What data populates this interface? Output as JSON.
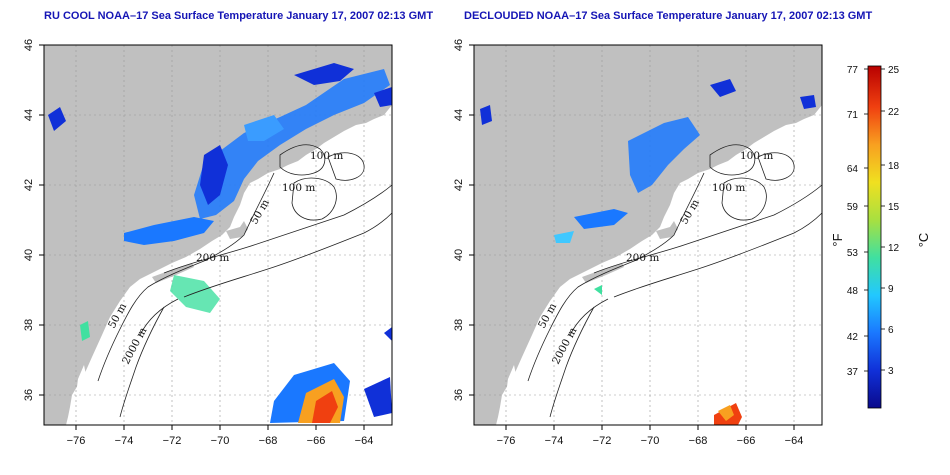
{
  "panels": [
    {
      "id": "left",
      "title": "RU COOL NOAA–17 Sea Surface Temperature January 17, 2007 02:13 GMT",
      "contour_labels": [
        "100 m",
        "100 m",
        "50 m",
        "200 m",
        "50 m",
        "2000 m"
      ]
    },
    {
      "id": "right",
      "title": "DECLOUDED NOAA–17 Sea Surface Temperature January 17, 2007 02:13 GMT",
      "contour_labels": [
        "100 m",
        "100 m",
        "50 m",
        "200 m",
        "50 m",
        "2000 m"
      ]
    }
  ],
  "axes": {
    "lon_ticks": [
      "−76",
      "−74",
      "−72",
      "−70",
      "−68",
      "−66",
      "−64"
    ],
    "lat_ticks": [
      "46",
      "44",
      "42",
      "40",
      "38",
      "36"
    ],
    "lon_range": [
      -77,
      -63
    ],
    "lat_range": [
      35,
      46
    ]
  },
  "colorbar": {
    "fahrenheit_ticks": [
      "77",
      "71",
      "64",
      "59",
      "53",
      "48",
      "42",
      "37"
    ],
    "celsius_ticks": [
      "25",
      "22",
      "18",
      "15",
      "12",
      "9",
      "6",
      "3"
    ],
    "fahrenheit_unit": "°F",
    "celsius_unit": "°C",
    "colors": [
      "#0a0a8c",
      "#1030d8",
      "#1a78ff",
      "#22c8ff",
      "#40e0a0",
      "#a8e040",
      "#f0e020",
      "#f8a020",
      "#f04010",
      "#b80000"
    ]
  },
  "colors": {
    "land": "#c0c0c0",
    "ocean": "#ffffff",
    "title": "#1515b5"
  }
}
